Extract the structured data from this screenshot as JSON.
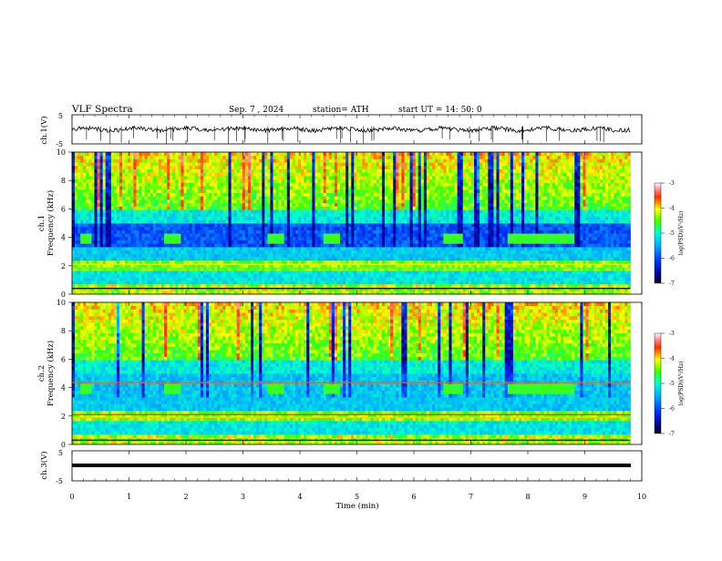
{
  "header": {
    "title": "VLF  Spectra",
    "date": "Sep. 7  , 2024",
    "station": "station= ATH",
    "start": "start  UT  =   14: 50: 0"
  },
  "colors": {
    "background_dark": "#00008b",
    "low": "#0050ff",
    "mid": "#00ffff",
    "high": "#00ff00",
    "peak": "#ff2000"
  },
  "chart_data": [
    {
      "type": "line",
      "panel": "ch1-waveform",
      "ylabel": "ch.1(V)",
      "yticks": [
        "5",
        "-5"
      ],
      "ylim": [
        -5,
        5
      ],
      "x_min": [
        0,
        10
      ],
      "approx_level": 0
    },
    {
      "type": "heatmap",
      "panel": "ch1-spectrogram",
      "ylabel": "ch.1\nFrequency  (kHz)",
      "ylabel_lines": [
        "ch.1",
        "Frequency  (kHz)"
      ],
      "yticks": [
        "0",
        "2",
        "4",
        "6",
        "8",
        "10"
      ],
      "ylim_khz": [
        0,
        10
      ],
      "xlim_min": [
        0,
        10
      ],
      "data_end_min": 9.8,
      "tone_khz": 4,
      "tone_segments_min": [
        [
          0.1,
          0.3
        ],
        [
          1.6,
          1.9
        ],
        [
          3.4,
          3.7
        ],
        [
          4.4,
          4.7
        ],
        [
          6.5,
          6.85
        ],
        [
          7.6,
          8.8
        ]
      ],
      "colorbar": {
        "label": "log(PSD)(V²/Hz)",
        "ticks": [
          "-3",
          "-4",
          "-5",
          "-6",
          "-7"
        ],
        "range": [
          -7,
          -3
        ]
      }
    },
    {
      "type": "heatmap",
      "panel": "ch2-spectrogram",
      "ylabel": "ch.2\nFrequency  (kHz)",
      "ylabel_lines": [
        "ch.2",
        "Frequency  (kHz)"
      ],
      "yticks": [
        "0",
        "2",
        "4",
        "6",
        "8",
        "10"
      ],
      "ylim_khz": [
        0,
        10
      ],
      "xlim_min": [
        0,
        10
      ],
      "data_end_min": 9.8,
      "tone_khz": 4,
      "tone_segments_min": [
        [
          0.1,
          0.3
        ],
        [
          1.6,
          1.9
        ],
        [
          3.4,
          3.7
        ],
        [
          4.4,
          4.7
        ],
        [
          6.5,
          6.85
        ],
        [
          7.6,
          8.8
        ]
      ],
      "colorbar": {
        "label": "log(PSD)(V²/Hz)",
        "ticks": [
          "-3",
          "-4",
          "-5",
          "-6",
          "-7"
        ],
        "range": [
          -7,
          -3
        ]
      }
    },
    {
      "type": "line",
      "panel": "ch3-waveform",
      "ylabel": "ch.3(V)",
      "yticks": [
        "5",
        "-5"
      ],
      "ylim": [
        -5,
        5
      ],
      "approx_level": -1.5,
      "xlabel": "Time  (min)",
      "xticks": [
        "0",
        "1",
        "2",
        "3",
        "4",
        "5",
        "6",
        "7",
        "8",
        "9",
        "10"
      ],
      "xlim": [
        0,
        10
      ]
    }
  ]
}
